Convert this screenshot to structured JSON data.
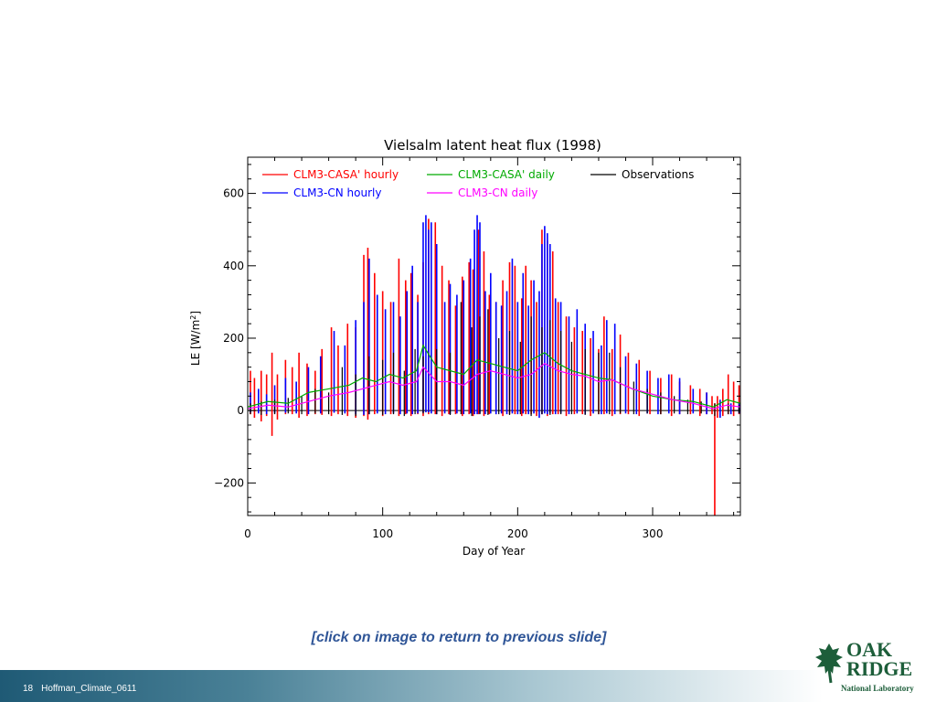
{
  "chart_data": {
    "type": "line",
    "title": "Vielsalm latent heat flux (1998)",
    "xlabel": "Day of Year",
    "ylabel": "LE [W/m²]",
    "xlim": [
      0,
      365
    ],
    "ylim": [
      -290,
      700
    ],
    "x_ticks": [
      0,
      100,
      200,
      300
    ],
    "y_ticks": [
      -200,
      0,
      200,
      400,
      600
    ],
    "grid": false,
    "legend_position": "top",
    "series": [
      {
        "name": "CLM3-CASA' hourly",
        "color": "#ff0000",
        "style": "spikes",
        "x": [
          2,
          5,
          10,
          14,
          18,
          22,
          28,
          33,
          38,
          44,
          50,
          55,
          62,
          67,
          74,
          80,
          86,
          89,
          94,
          100,
          106,
          112,
          117,
          121,
          126,
          130,
          134,
          139,
          144,
          149,
          154,
          159,
          164,
          167,
          171,
          175,
          179,
          184,
          189,
          194,
          198,
          203,
          206,
          210,
          214,
          218,
          222,
          226,
          230,
          236,
          242,
          248,
          254,
          260,
          264,
          270,
          276,
          282,
          290,
          298,
          306,
          314,
          320,
          328,
          335,
          340,
          344,
          346,
          348,
          352,
          356,
          360,
          364
        ],
        "lo": [
          -10,
          -20,
          -30,
          -15,
          -70,
          -25,
          -10,
          -10,
          -20,
          -15,
          -10,
          -12,
          -15,
          -10,
          -15,
          -20,
          -15,
          -25,
          -10,
          -15,
          -10,
          -15,
          -10,
          -15,
          -10,
          -15,
          -10,
          -10,
          -15,
          -10,
          -10,
          -15,
          -10,
          -15,
          -10,
          -15,
          -10,
          -10,
          -15,
          -10,
          -10,
          -15,
          -10,
          -10,
          -15,
          -10,
          -15,
          -10,
          -10,
          -15,
          -10,
          -10,
          -15,
          -10,
          -10,
          -15,
          -10,
          -10,
          -15,
          -10,
          -10,
          -15,
          -10,
          -10,
          -15,
          -10,
          -10,
          -290,
          -20,
          -15,
          -10,
          -15,
          -10
        ],
        "hi": [
          110,
          90,
          110,
          100,
          160,
          100,
          140,
          120,
          160,
          130,
          110,
          170,
          230,
          180,
          240,
          230,
          430,
          450,
          380,
          330,
          300,
          420,
          360,
          380,
          320,
          410,
          530,
          520,
          400,
          360,
          290,
          370,
          410,
          390,
          500,
          440,
          320,
          300,
          360,
          410,
          400,
          310,
          400,
          360,
          300,
          500,
          470,
          440,
          300,
          260,
          230,
          220,
          200,
          170,
          260,
          170,
          210,
          160,
          140,
          110,
          90,
          100,
          80,
          70,
          60,
          50,
          40,
          20,
          40,
          60,
          100,
          80,
          70
        ]
      },
      {
        "name": "CLM3-CN hourly",
        "color": "#0000ff",
        "style": "spikes",
        "x": [
          2,
          8,
          14,
          20,
          28,
          36,
          45,
          54,
          64,
          72,
          80,
          86,
          90,
          96,
          102,
          108,
          113,
          118,
          122,
          126,
          130,
          132,
          134,
          136,
          140,
          146,
          150,
          155,
          160,
          165,
          168,
          170,
          172,
          176,
          180,
          184,
          188,
          192,
          196,
          200,
          204,
          208,
          212,
          216,
          218,
          220,
          222,
          224,
          228,
          232,
          238,
          244,
          250,
          256,
          262,
          266,
          272,
          280,
          288,
          296,
          304,
          312,
          320,
          330,
          340,
          350,
          358,
          364
        ],
        "lo": [
          -5,
          -8,
          -10,
          -8,
          -6,
          -8,
          -10,
          -8,
          -6,
          -8,
          -10,
          -12,
          -10,
          -8,
          -10,
          -8,
          -10,
          -8,
          -10,
          -8,
          -5,
          -5,
          -5,
          -8,
          -10,
          -8,
          -10,
          -8,
          -10,
          -8,
          -10,
          -10,
          -8,
          -10,
          -8,
          -10,
          -8,
          -10,
          -8,
          -10,
          -8,
          -10,
          -8,
          -20,
          -10,
          -8,
          -10,
          -8,
          -10,
          -8,
          -10,
          -8,
          -10,
          -8,
          -10,
          -8,
          -10,
          -8,
          -10,
          -8,
          -10,
          -8,
          -10,
          -8,
          -10,
          -20,
          -10,
          -8
        ],
        "hi": [
          50,
          60,
          45,
          70,
          90,
          80,
          120,
          150,
          220,
          180,
          250,
          300,
          420,
          320,
          280,
          300,
          260,
          330,
          400,
          300,
          520,
          540,
          500,
          520,
          460,
          300,
          350,
          320,
          360,
          420,
          500,
          540,
          520,
          330,
          380,
          300,
          290,
          330,
          420,
          300,
          380,
          290,
          360,
          330,
          460,
          510,
          490,
          460,
          310,
          300,
          260,
          280,
          240,
          220,
          180,
          250,
          240,
          150,
          130,
          110,
          90,
          100,
          90,
          60,
          50,
          30,
          20,
          20
        ]
      },
      {
        "name": "Observations",
        "color": "#000000",
        "style": "spikes",
        "x": [
          2,
          10,
          20,
          30,
          40,
          50,
          60,
          70,
          80,
          90,
          100,
          108,
          116,
          124,
          130,
          140,
          150,
          158,
          166,
          172,
          178,
          186,
          194,
          202,
          210,
          218,
          224,
          232,
          240,
          250,
          260,
          268,
          276,
          286,
          296,
          306,
          316,
          326,
          336,
          346,
          356,
          364
        ],
        "lo": [
          -10,
          -12,
          -10,
          -8,
          -10,
          -8,
          -10,
          -12,
          -15,
          -10,
          -12,
          -10,
          -15,
          -10,
          -8,
          -10,
          -12,
          -10,
          -15,
          -10,
          -12,
          -10,
          -12,
          -10,
          -15,
          -10,
          -12,
          -10,
          -10,
          -12,
          -10,
          -10,
          -8,
          -10,
          -8,
          -10,
          -8,
          -10,
          -8,
          -15,
          -10,
          -8
        ],
        "hi": [
          20,
          25,
          30,
          35,
          40,
          60,
          50,
          120,
          100,
          150,
          140,
          160,
          110,
          170,
          150,
          170,
          160,
          300,
          230,
          260,
          280,
          200,
          220,
          190,
          260,
          230,
          250,
          220,
          190,
          170,
          160,
          160,
          120,
          80,
          60,
          50,
          40,
          30,
          25,
          20,
          20,
          15
        ]
      },
      {
        "name": "CLM3-CASA' daily",
        "color": "#00aa00",
        "style": "line",
        "x": [
          0,
          15,
          30,
          45,
          60,
          75,
          85,
          95,
          105,
          115,
          125,
          130,
          135,
          140,
          150,
          160,
          170,
          180,
          190,
          200,
          210,
          220,
          230,
          240,
          250,
          260,
          270,
          285,
          300,
          315,
          330,
          345,
          355,
          365
        ],
        "y": [
          10,
          25,
          20,
          50,
          60,
          70,
          90,
          80,
          100,
          90,
          110,
          180,
          150,
          120,
          110,
          100,
          140,
          130,
          120,
          110,
          140,
          160,
          130,
          110,
          100,
          90,
          85,
          60,
          40,
          30,
          25,
          10,
          30,
          20
        ]
      },
      {
        "name": "CLM3-CN daily",
        "color": "#ff00ff",
        "style": "line",
        "x": [
          0,
          15,
          30,
          45,
          60,
          75,
          85,
          95,
          105,
          115,
          125,
          130,
          135,
          140,
          150,
          160,
          170,
          180,
          190,
          200,
          210,
          220,
          230,
          240,
          250,
          260,
          270,
          285,
          300,
          315,
          330,
          345,
          355,
          365
        ],
        "y": [
          5,
          15,
          10,
          25,
          40,
          50,
          60,
          70,
          80,
          70,
          80,
          120,
          100,
          80,
          80,
          70,
          100,
          110,
          100,
          90,
          100,
          130,
          110,
          100,
          95,
          80,
          85,
          60,
          45,
          30,
          20,
          5,
          15,
          10
        ]
      }
    ]
  },
  "caption": "[click on image to return to previous slide]",
  "footer": {
    "slide_number": "18",
    "label": "Hoffman_Climate_0611"
  },
  "logo": {
    "line1": "OAK",
    "line2": "RIDGE",
    "line3": "National Laboratory",
    "icon": "oak-leaf-icon",
    "color": "#1d5e3a"
  }
}
